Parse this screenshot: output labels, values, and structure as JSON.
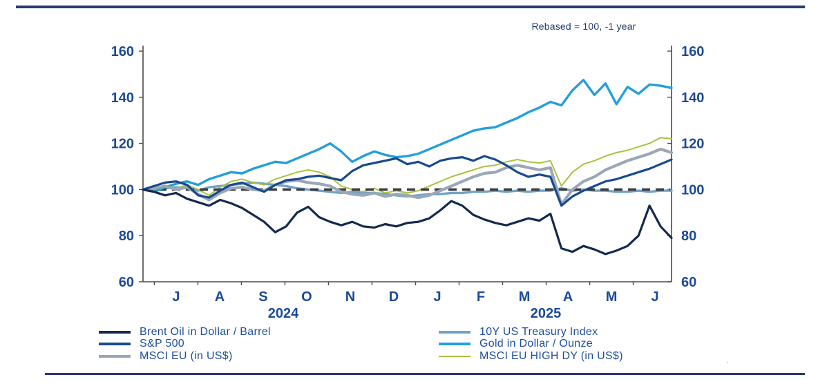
{
  "page": {
    "stray_dot": "."
  },
  "chart_data": {
    "type": "line",
    "annotation": "Rebased = 100,  -1 year",
    "ylim": [
      60,
      160
    ],
    "y_ticks": [
      160,
      140,
      120,
      100,
      80,
      60
    ],
    "y_axis_sides": [
      "left",
      "right"
    ],
    "grid": "off",
    "baseline": 100,
    "baseline_style": "dashed-dark-gray",
    "x_months": [
      {
        "label": "J",
        "pos": 0.0626
      },
      {
        "label": "A",
        "pos": 0.145
      },
      {
        "label": "S",
        "pos": 0.2274
      },
      {
        "label": "O",
        "pos": 0.3097
      },
      {
        "label": "N",
        "pos": 0.3921
      },
      {
        "label": "D",
        "pos": 0.4745
      },
      {
        "label": "J",
        "pos": 0.5569
      },
      {
        "label": "F",
        "pos": 0.6392
      },
      {
        "label": "M",
        "pos": 0.7216
      },
      {
        "label": "A",
        "pos": 0.804
      },
      {
        "label": "M",
        "pos": 0.8864
      },
      {
        "label": "J",
        "pos": 0.9687
      }
    ],
    "x_tick_pos": [
      0.0214,
      0.1038,
      0.1862,
      0.2685,
      0.3509,
      0.4333,
      0.5157,
      0.598,
      0.6804,
      0.7628,
      0.8452,
      0.9275
    ],
    "years": [
      {
        "label": "2024",
        "pos": 0.2654
      },
      {
        "label": "2025",
        "pos": 0.7621
      }
    ],
    "legend_position": "bottom-two-columns",
    "series": [
      {
        "name": "Brent Oil in Dollar / Barrel",
        "color": "#14294f",
        "width": 3.2,
        "values": [
          100,
          99,
          97.5,
          98.5,
          96,
          94.5,
          93,
          95.5,
          94,
          92,
          89,
          86,
          81.5,
          84,
          90,
          92.5,
          88,
          86,
          84.5,
          86,
          84,
          83.5,
          85,
          84,
          85.5,
          86,
          87.5,
          91,
          95,
          93,
          89,
          87,
          85.5,
          84.5,
          86,
          87.5,
          86.5,
          89.5,
          74.5,
          73,
          75.5,
          74,
          72,
          73.5,
          75.5,
          80,
          93,
          84,
          79
        ]
      },
      {
        "name": "S&P 500",
        "color": "#17498f",
        "width": 3.2,
        "values": [
          100,
          101.5,
          103,
          103.5,
          102,
          97.5,
          96.5,
          99.5,
          102,
          103,
          101,
          99,
          102,
          104,
          104.5,
          105.5,
          106,
          105,
          104,
          108,
          110.5,
          111.5,
          112.5,
          113.5,
          111,
          112,
          110,
          112.5,
          113.5,
          114,
          112.5,
          114.5,
          113,
          110.5,
          107.5,
          105.5,
          106.5,
          105.5,
          93,
          97,
          99.5,
          101.5,
          103.5,
          104.5,
          106,
          107.5,
          109,
          111,
          113
        ]
      },
      {
        "name": "MSCI EU (in US$)",
        "color": "#9ba7b6",
        "width": 4.2,
        "values": [
          100,
          100.5,
          101.5,
          100,
          101,
          98,
          95.5,
          98.5,
          100.5,
          101,
          100,
          99.5,
          102,
          103.5,
          104,
          103,
          102.5,
          101.5,
          99,
          98,
          97.5,
          98.5,
          97,
          98,
          97.5,
          96.5,
          97.5,
          99.5,
          101.5,
          103.5,
          105.5,
          107,
          107.5,
          109.5,
          110.5,
          109.5,
          108.5,
          109.5,
          93.5,
          100,
          103.5,
          105.5,
          108.5,
          110.5,
          112.5,
          114,
          115.5,
          117.5,
          116
        ]
      },
      {
        "name": "10Y US Treasury Index",
        "color": "#6fa3ca",
        "width": 3.4,
        "values": [
          100,
          99.5,
          100.5,
          101,
          100.5,
          99.5,
          101,
          101.5,
          102,
          102.5,
          103,
          102.5,
          102,
          101.5,
          100.5,
          100,
          99.5,
          99,
          98.5,
          99,
          98.5,
          98.5,
          98,
          97.5,
          97,
          97.5,
          98,
          98,
          98.5,
          98.5,
          99,
          99,
          99.5,
          99,
          99.5,
          99,
          99.5,
          99.5,
          100.5,
          99.5,
          100,
          99.5,
          99.5,
          99,
          99,
          99.5,
          99,
          99.5,
          99.5
        ]
      },
      {
        "name": "Gold in Dollar / Ounze",
        "color": "#229fdb",
        "width": 3.4,
        "values": [
          100,
          99,
          101,
          102.5,
          103.5,
          102,
          104.5,
          106,
          107.5,
          107,
          109,
          110.5,
          112,
          111.5,
          113.5,
          115.5,
          117.5,
          120,
          116.5,
          112,
          114.5,
          116.5,
          115,
          114,
          114.5,
          115.5,
          117.5,
          119.5,
          121.5,
          123.5,
          125.5,
          126.5,
          127,
          129,
          131,
          133.5,
          135.5,
          138,
          136.5,
          143,
          147.5,
          141,
          146,
          137,
          144.5,
          141.5,
          145.5,
          145,
          144
        ]
      },
      {
        "name": "MSCI EU HIGH DY (in US$)",
        "color": "#a9c23c",
        "width": 2,
        "values": [
          100,
          99.5,
          101,
          100.5,
          102,
          100,
          97.5,
          101,
          103.5,
          104.5,
          103,
          102,
          104.5,
          106,
          107.5,
          108.5,
          107.5,
          105.5,
          101.5,
          100,
          99,
          100.5,
          98.5,
          99.5,
          98.5,
          99.5,
          101.5,
          103.5,
          105.5,
          107,
          108.5,
          110,
          110.5,
          112,
          113,
          112,
          111.5,
          112.5,
          101.5,
          107.5,
          111,
          112.5,
          114.5,
          116,
          117,
          118.5,
          120,
          122.5,
          122
        ]
      }
    ],
    "legend_columns": {
      "left": [
        0,
        1,
        2
      ],
      "right": [
        3,
        4,
        5
      ]
    }
  }
}
